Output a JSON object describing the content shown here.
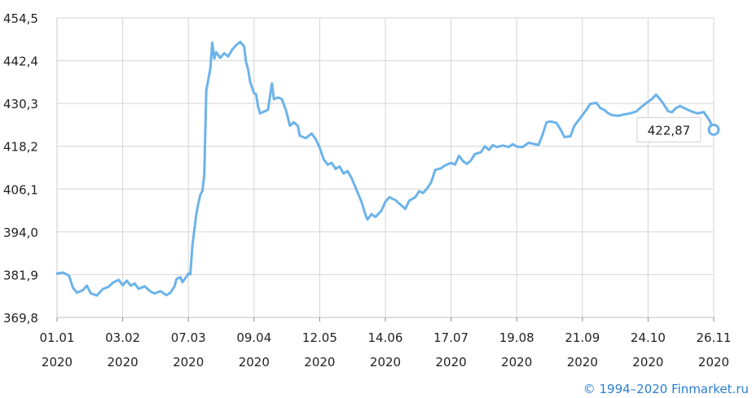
{
  "chart_data": {
    "type": "line",
    "title": "",
    "xlabel": "",
    "ylabel": "",
    "ylim": [
      369.8,
      454.5
    ],
    "y_ticks": [
      "454,5",
      "442,4",
      "430,3",
      "418,2",
      "406,1",
      "394,0",
      "381,9",
      "369,8"
    ],
    "y_tick_values": [
      454.5,
      442.4,
      430.3,
      418.2,
      406.1,
      394.0,
      381.9,
      369.8
    ],
    "x_ticks": [
      {
        "date": "01.01",
        "year": "2020"
      },
      {
        "date": "03.02",
        "year": "2020"
      },
      {
        "date": "07.03",
        "year": "2020"
      },
      {
        "date": "09.04",
        "year": "2020"
      },
      {
        "date": "12.05",
        "year": "2020"
      },
      {
        "date": "14.06",
        "year": "2020"
      },
      {
        "date": "17.07",
        "year": "2020"
      },
      {
        "date": "19.08",
        "year": "2020"
      },
      {
        "date": "21.09",
        "year": "2020"
      },
      {
        "date": "24.10",
        "year": "2020"
      },
      {
        "date": "26.11",
        "year": "2020"
      }
    ],
    "grid": true,
    "line_color": "#6cb3ea",
    "grid_color": "#d4d4d4",
    "series": [
      {
        "points": [
          [
            "2020-01-01",
            382.2
          ],
          [
            "2020-01-04",
            382.5
          ],
          [
            "2020-01-07",
            381.6
          ],
          [
            "2020-01-09",
            378.2
          ],
          [
            "2020-01-11",
            376.8
          ],
          [
            "2020-01-14",
            377.5
          ],
          [
            "2020-01-16",
            378.8
          ],
          [
            "2020-01-18",
            376.6
          ],
          [
            "2020-01-21",
            376.0
          ],
          [
            "2020-01-24",
            377.8
          ],
          [
            "2020-01-27",
            378.5
          ],
          [
            "2020-01-29",
            379.6
          ],
          [
            "2020-02-01",
            380.4
          ],
          [
            "2020-02-03",
            378.9
          ],
          [
            "2020-02-05",
            380.2
          ],
          [
            "2020-02-07",
            378.8
          ],
          [
            "2020-02-09",
            379.4
          ],
          [
            "2020-02-11",
            377.9
          ],
          [
            "2020-02-14",
            378.6
          ],
          [
            "2020-02-17",
            377.1
          ],
          [
            "2020-02-19",
            376.6
          ],
          [
            "2020-02-22",
            377.2
          ],
          [
            "2020-02-25",
            376.1
          ],
          [
            "2020-02-27",
            376.8
          ],
          [
            "2020-02-29",
            378.5
          ],
          [
            "2020-03-01",
            380.6
          ],
          [
            "2020-03-03",
            381.2
          ],
          [
            "2020-03-04",
            379.8
          ],
          [
            "2020-03-06",
            381.3
          ],
          [
            "2020-03-07",
            382.2
          ],
          [
            "2020-03-08",
            382.0
          ],
          [
            "2020-03-09",
            390.0
          ],
          [
            "2020-03-10",
            394.5
          ],
          [
            "2020-03-11",
            399.0
          ],
          [
            "2020-03-12",
            402.0
          ],
          [
            "2020-03-13",
            404.5
          ],
          [
            "2020-03-14",
            405.5
          ],
          [
            "2020-03-15",
            410.0
          ],
          [
            "2020-03-16",
            434.0
          ],
          [
            "2020-03-17",
            437.0
          ],
          [
            "2020-03-18",
            440.0
          ],
          [
            "2020-03-19",
            447.5
          ],
          [
            "2020-03-20",
            443.0
          ],
          [
            "2020-03-21",
            444.8
          ],
          [
            "2020-03-23",
            443.2
          ],
          [
            "2020-03-25",
            444.5
          ],
          [
            "2020-03-27",
            443.6
          ],
          [
            "2020-03-29",
            445.5
          ],
          [
            "2020-03-31",
            446.8
          ],
          [
            "2020-04-02",
            447.7
          ],
          [
            "2020-04-04",
            446.5
          ],
          [
            "2020-04-05",
            442.0
          ],
          [
            "2020-04-06",
            440.0
          ],
          [
            "2020-04-07",
            436.5
          ],
          [
            "2020-04-09",
            433.2
          ],
          [
            "2020-04-10",
            433.0
          ],
          [
            "2020-04-11",
            429.5
          ],
          [
            "2020-04-12",
            427.5
          ],
          [
            "2020-04-14",
            428.0
          ],
          [
            "2020-04-16",
            428.5
          ],
          [
            "2020-04-18",
            436.0
          ],
          [
            "2020-04-19",
            431.5
          ],
          [
            "2020-04-21",
            432.0
          ],
          [
            "2020-04-23",
            431.5
          ],
          [
            "2020-04-25",
            428.5
          ],
          [
            "2020-04-27",
            424.0
          ],
          [
            "2020-04-29",
            425.0
          ],
          [
            "2020-05-01",
            424.0
          ],
          [
            "2020-05-02",
            421.2
          ],
          [
            "2020-05-05",
            420.5
          ],
          [
            "2020-05-08",
            421.8
          ],
          [
            "2020-05-10",
            420.2
          ],
          [
            "2020-05-12",
            417.8
          ],
          [
            "2020-05-14",
            414.5
          ],
          [
            "2020-05-16",
            413.0
          ],
          [
            "2020-05-18",
            413.5
          ],
          [
            "2020-05-20",
            411.8
          ],
          [
            "2020-05-22",
            412.5
          ],
          [
            "2020-05-24",
            410.5
          ],
          [
            "2020-05-26",
            411.2
          ],
          [
            "2020-05-28",
            409.2
          ],
          [
            "2020-05-30",
            406.5
          ],
          [
            "2020-06-02",
            402.5
          ],
          [
            "2020-06-04",
            398.8
          ],
          [
            "2020-06-05",
            397.5
          ],
          [
            "2020-06-07",
            399.0
          ],
          [
            "2020-06-09",
            398.2
          ],
          [
            "2020-06-12",
            400.0
          ],
          [
            "2020-06-14",
            402.5
          ],
          [
            "2020-06-16",
            403.8
          ],
          [
            "2020-06-19",
            403.0
          ],
          [
            "2020-06-21",
            402.0
          ],
          [
            "2020-06-24",
            400.5
          ],
          [
            "2020-06-26",
            402.8
          ],
          [
            "2020-06-29",
            403.8
          ],
          [
            "2020-07-01",
            405.5
          ],
          [
            "2020-07-03",
            405.0
          ],
          [
            "2020-07-05",
            406.3
          ],
          [
            "2020-07-07",
            408.0
          ],
          [
            "2020-07-09",
            411.5
          ],
          [
            "2020-07-12",
            412.0
          ],
          [
            "2020-07-14",
            412.8
          ],
          [
            "2020-07-17",
            413.5
          ],
          [
            "2020-07-19",
            413.0
          ],
          [
            "2020-07-21",
            415.5
          ],
          [
            "2020-07-23",
            414.0
          ],
          [
            "2020-07-25",
            413.2
          ],
          [
            "2020-07-27",
            414.2
          ],
          [
            "2020-07-29",
            416.0
          ],
          [
            "2020-08-01",
            416.5
          ],
          [
            "2020-08-03",
            418.2
          ],
          [
            "2020-08-05",
            417.2
          ],
          [
            "2020-08-07",
            418.5
          ],
          [
            "2020-08-09",
            418.0
          ],
          [
            "2020-08-12",
            418.4
          ],
          [
            "2020-08-15",
            418.0
          ],
          [
            "2020-08-17",
            418.8
          ],
          [
            "2020-08-19",
            418.1
          ],
          [
            "2020-08-22",
            418.0
          ],
          [
            "2020-08-25",
            419.2
          ],
          [
            "2020-08-28",
            418.8
          ],
          [
            "2020-08-30",
            418.6
          ],
          [
            "2020-09-01",
            421.5
          ],
          [
            "2020-09-03",
            425.0
          ],
          [
            "2020-09-05",
            425.2
          ],
          [
            "2020-09-08",
            424.8
          ],
          [
            "2020-09-10",
            423.0
          ],
          [
            "2020-09-12",
            420.8
          ],
          [
            "2020-09-15",
            421.0
          ],
          [
            "2020-09-17",
            424.0
          ],
          [
            "2020-09-19",
            425.5
          ],
          [
            "2020-09-21",
            427.0
          ],
          [
            "2020-09-23",
            428.5
          ],
          [
            "2020-09-25",
            430.2
          ],
          [
            "2020-09-28",
            430.5
          ],
          [
            "2020-09-30",
            429.0
          ],
          [
            "2020-10-02",
            428.5
          ],
          [
            "2020-10-04",
            427.5
          ],
          [
            "2020-10-06",
            427.0
          ],
          [
            "2020-10-09",
            426.8
          ],
          [
            "2020-10-12",
            427.2
          ],
          [
            "2020-10-15",
            427.5
          ],
          [
            "2020-10-18",
            428.0
          ],
          [
            "2020-10-21",
            429.5
          ],
          [
            "2020-10-24",
            430.8
          ],
          [
            "2020-10-26",
            431.6
          ],
          [
            "2020-10-28",
            432.8
          ],
          [
            "2020-10-30",
            431.5
          ],
          [
            "2020-11-01",
            430.0
          ],
          [
            "2020-11-03",
            428.2
          ],
          [
            "2020-11-05",
            427.8
          ],
          [
            "2020-11-07",
            429.0
          ],
          [
            "2020-11-09",
            429.6
          ],
          [
            "2020-11-12",
            428.8
          ],
          [
            "2020-11-15",
            428.0
          ],
          [
            "2020-11-18",
            427.5
          ],
          [
            "2020-11-21",
            427.9
          ],
          [
            "2020-11-24",
            425.4
          ],
          [
            "2020-11-26",
            422.87
          ]
        ]
      }
    ],
    "last_value_label": "422,87"
  },
  "footer": {
    "copyright": "© 1994–2020 Finmarket.ru"
  }
}
